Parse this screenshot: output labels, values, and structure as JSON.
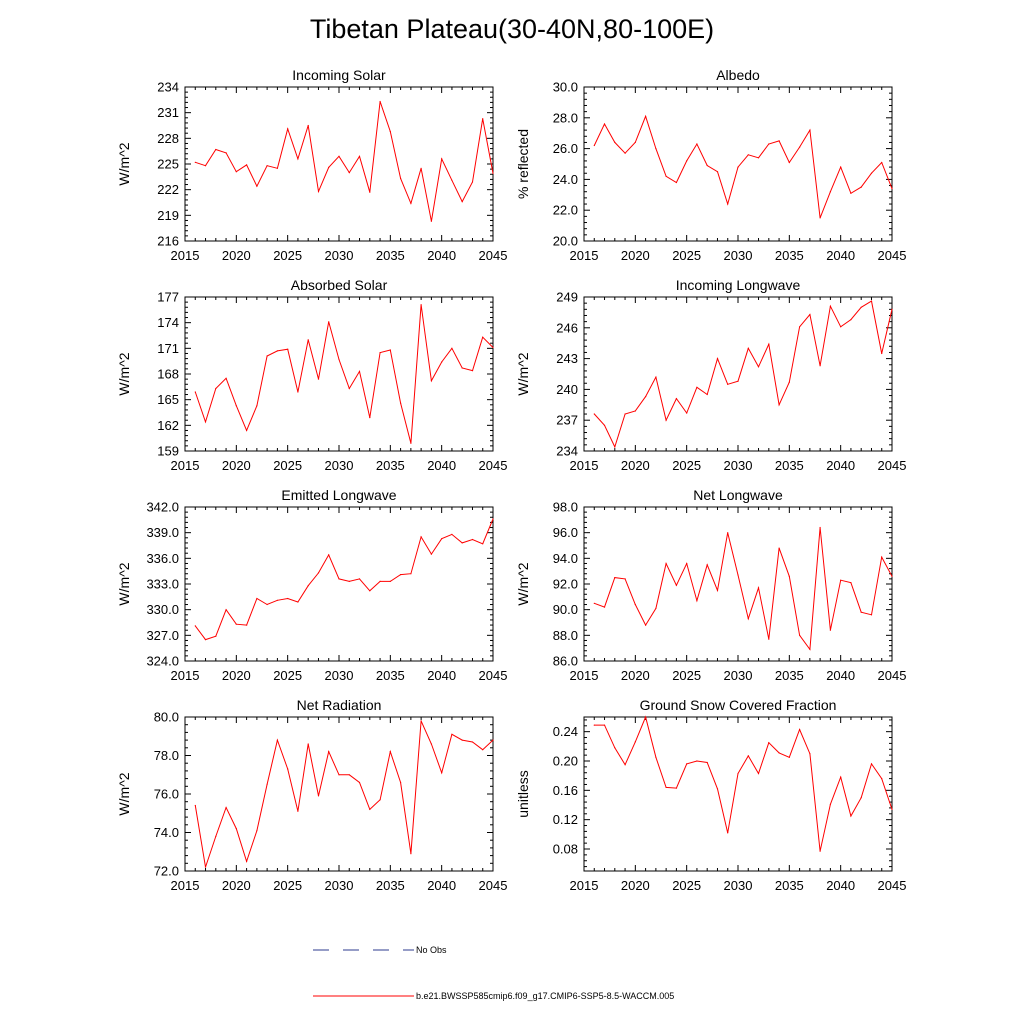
{
  "page": {
    "title": "Tibetan Plateau(30-40N,80-100E)"
  },
  "legend": {
    "no_obs": {
      "label": "No Obs",
      "color": "#2e3b8f"
    },
    "model": {
      "label": "b.e21.BWSSP585cmip6.f09_g17.CMIP6-SSP5-8.5-WACCM.005",
      "color": "#ff0000"
    }
  },
  "chart_data": [
    {
      "type": "line",
      "title": "Incoming Solar",
      "ylabel": "W/m^2",
      "xlabel": "",
      "xlim": [
        2015,
        2045
      ],
      "xticks": [
        "2015",
        "2020",
        "2025",
        "2030",
        "2035",
        "2040",
        "2045"
      ],
      "ylim": [
        216,
        234
      ],
      "yticks": [
        "216",
        "219",
        "222",
        "225",
        "228",
        "231",
        "234"
      ],
      "series": [
        {
          "name": "b.e21.BWSSP585cmip6.f09_g17.CMIP6-SSP5-8.5-WACCM.005",
          "x": [
            2016,
            2017,
            2018,
            2019,
            2020,
            2021,
            2022,
            2023,
            2024,
            2025,
            2026,
            2027,
            2028,
            2029,
            2030,
            2031,
            2032,
            2033,
            2034,
            2035,
            2036,
            2037,
            2038,
            2039,
            2040,
            2041,
            2042,
            2043,
            2044,
            2045
          ],
          "values": [
            225.2,
            224.8,
            226.7,
            226.3,
            224.1,
            224.9,
            222.4,
            224.8,
            224.5,
            229.1,
            225.6,
            229.5,
            221.8,
            224.6,
            225.9,
            224.0,
            225.9,
            221.7,
            232.3,
            228.8,
            223.3,
            220.4,
            224.5,
            218.3,
            225.6,
            223.1,
            220.6,
            222.9,
            230.3,
            223.9
          ]
        }
      ]
    },
    {
      "type": "line",
      "title": "Albedo",
      "ylabel": "% reflected",
      "xlabel": "",
      "xlim": [
        2015,
        2045
      ],
      "xticks": [
        "2015",
        "2020",
        "2025",
        "2030",
        "2035",
        "2040",
        "2045"
      ],
      "ylim": [
        20,
        30
      ],
      "yticks": [
        "20.0",
        "22.0",
        "24.0",
        "26.0",
        "28.0",
        "30.0"
      ],
      "series": [
        {
          "name": "b.e21.BWSSP585cmip6.f09_g17.CMIP6-SSP5-8.5-WACCM.005",
          "x": [
            2016,
            2017,
            2018,
            2019,
            2020,
            2021,
            2022,
            2023,
            2024,
            2025,
            2026,
            2027,
            2028,
            2029,
            2030,
            2031,
            2032,
            2033,
            2034,
            2035,
            2036,
            2037,
            2038,
            2039,
            2040,
            2041,
            2042,
            2043,
            2044,
            2045
          ],
          "values": [
            26.2,
            27.6,
            26.4,
            25.7,
            26.4,
            28.1,
            26.0,
            24.2,
            23.8,
            25.2,
            26.3,
            24.9,
            24.5,
            22.4,
            24.8,
            25.6,
            25.4,
            26.3,
            26.5,
            25.1,
            26.1,
            27.2,
            21.5,
            23.2,
            24.8,
            23.1,
            23.5,
            24.4,
            25.1,
            23.4
          ]
        }
      ]
    },
    {
      "type": "line",
      "title": "Absorbed Solar",
      "ylabel": "W/m^2",
      "xlabel": "",
      "xlim": [
        2015,
        2045
      ],
      "xticks": [
        "2015",
        "2020",
        "2025",
        "2030",
        "2035",
        "2040",
        "2045"
      ],
      "ylim": [
        159,
        177
      ],
      "yticks": [
        "159",
        "162",
        "165",
        "168",
        "171",
        "174",
        "177"
      ],
      "series": [
        {
          "name": "b.e21.BWSSP585cmip6.f09_g17.CMIP6-SSP5-8.5-WACCM.005",
          "x": [
            2016,
            2017,
            2018,
            2019,
            2020,
            2021,
            2022,
            2023,
            2024,
            2025,
            2026,
            2027,
            2028,
            2029,
            2030,
            2031,
            2032,
            2033,
            2034,
            2035,
            2036,
            2037,
            2038,
            2039,
            2040,
            2041,
            2042,
            2043,
            2044,
            2045
          ],
          "values": [
            165.9,
            162.4,
            166.3,
            167.5,
            164.3,
            161.4,
            164.3,
            170.1,
            170.7,
            170.9,
            165.9,
            172.0,
            167.4,
            174.1,
            169.7,
            166.3,
            168.3,
            162.9,
            170.5,
            170.8,
            164.6,
            159.9,
            176.1,
            167.2,
            169.4,
            171.0,
            168.7,
            168.4,
            172.3,
            171.1
          ]
        }
      ]
    },
    {
      "type": "line",
      "title": "Incoming Longwave",
      "ylabel": "W/m^2",
      "xlabel": "",
      "xlim": [
        2015,
        2045
      ],
      "xticks": [
        "2015",
        "2020",
        "2025",
        "2030",
        "2035",
        "2040",
        "2045"
      ],
      "ylim": [
        234,
        249
      ],
      "yticks": [
        "234",
        "237",
        "240",
        "243",
        "246",
        "249"
      ],
      "series": [
        {
          "name": "b.e21.BWSSP585cmip6.f09_g17.CMIP6-SSP5-8.5-WACCM.005",
          "x": [
            2016,
            2017,
            2018,
            2019,
            2020,
            2021,
            2022,
            2023,
            2024,
            2025,
            2026,
            2027,
            2028,
            2029,
            2030,
            2031,
            2032,
            2033,
            2034,
            2035,
            2036,
            2037,
            2038,
            2039,
            2040,
            2041,
            2042,
            2043,
            2044,
            2045
          ],
          "values": [
            237.6,
            236.5,
            234.4,
            237.6,
            237.9,
            239.3,
            241.2,
            237.0,
            239.1,
            237.7,
            240.2,
            239.5,
            243.0,
            240.5,
            240.8,
            244.0,
            242.2,
            244.4,
            238.5,
            240.7,
            246.1,
            247.3,
            242.3,
            248.1,
            246.1,
            246.8,
            248.0,
            248.6,
            243.5,
            247.8
          ]
        }
      ]
    },
    {
      "type": "line",
      "title": "Emitted Longwave",
      "ylabel": "W/m^2",
      "xlabel": "",
      "xlim": [
        2015,
        2045
      ],
      "xticks": [
        "2015",
        "2020",
        "2025",
        "2030",
        "2035",
        "2040",
        "2045"
      ],
      "ylim": [
        324,
        342
      ],
      "yticks": [
        "324.0",
        "327.0",
        "330.0",
        "333.0",
        "336.0",
        "339.0",
        "342.0"
      ],
      "series": [
        {
          "name": "b.e21.BWSSP585cmip6.f09_g17.CMIP6-SSP5-8.5-WACCM.005",
          "x": [
            2016,
            2017,
            2018,
            2019,
            2020,
            2021,
            2022,
            2023,
            2024,
            2025,
            2026,
            2027,
            2028,
            2029,
            2030,
            2031,
            2032,
            2033,
            2034,
            2035,
            2036,
            2037,
            2038,
            2039,
            2040,
            2041,
            2042,
            2043,
            2044,
            2045
          ],
          "values": [
            328.1,
            326.5,
            326.9,
            330.0,
            328.3,
            328.2,
            331.3,
            330.6,
            331.1,
            331.3,
            330.9,
            332.8,
            334.3,
            336.4,
            333.6,
            333.3,
            333.6,
            332.2,
            333.3,
            333.3,
            334.1,
            334.2,
            338.5,
            336.5,
            338.3,
            338.8,
            337.8,
            338.2,
            337.7,
            340.6
          ]
        }
      ]
    },
    {
      "type": "line",
      "title": "Net Longwave",
      "ylabel": "W/m^2",
      "xlabel": "",
      "xlim": [
        2015,
        2045
      ],
      "xticks": [
        "2015",
        "2020",
        "2025",
        "2030",
        "2035",
        "2040",
        "2045"
      ],
      "ylim": [
        86,
        98
      ],
      "yticks": [
        "86.0",
        "88.0",
        "90.0",
        "92.0",
        "94.0",
        "96.0",
        "98.0"
      ],
      "series": [
        {
          "name": "b.e21.BWSSP585cmip6.f09_g17.CMIP6-SSP5-8.5-WACCM.005",
          "x": [
            2016,
            2017,
            2018,
            2019,
            2020,
            2021,
            2022,
            2023,
            2024,
            2025,
            2026,
            2027,
            2028,
            2029,
            2030,
            2031,
            2032,
            2033,
            2034,
            2035,
            2036,
            2037,
            2038,
            2039,
            2040,
            2041,
            2042,
            2043,
            2044,
            2045
          ],
          "values": [
            90.5,
            90.2,
            92.5,
            92.4,
            90.4,
            88.8,
            90.1,
            93.6,
            91.9,
            93.6,
            90.7,
            93.5,
            91.5,
            96.0,
            92.7,
            89.3,
            91.7,
            87.7,
            94.8,
            92.6,
            88.0,
            86.9,
            96.4,
            88.4,
            92.3,
            92.1,
            89.8,
            89.6,
            94.1,
            92.6
          ]
        }
      ]
    },
    {
      "type": "line",
      "title": "Net Radiation",
      "ylabel": "W/m^2",
      "xlabel": "",
      "xlim": [
        2015,
        2045
      ],
      "xticks": [
        "2015",
        "2020",
        "2025",
        "2030",
        "2035",
        "2040",
        "2045"
      ],
      "ylim": [
        72,
        80
      ],
      "yticks": [
        "72.0",
        "74.0",
        "76.0",
        "78.0",
        "80.0"
      ],
      "series": [
        {
          "name": "b.e21.BWSSP585cmip6.f09_g17.CMIP6-SSP5-8.5-WACCM.005",
          "x": [
            2016,
            2017,
            2018,
            2019,
            2020,
            2021,
            2022,
            2023,
            2024,
            2025,
            2026,
            2027,
            2028,
            2029,
            2030,
            2031,
            2032,
            2033,
            2034,
            2035,
            2036,
            2037,
            2038,
            2039,
            2040,
            2041,
            2042,
            2043,
            2044,
            2045
          ],
          "values": [
            75.4,
            72.2,
            73.8,
            75.3,
            74.2,
            72.5,
            74.1,
            76.5,
            78.8,
            77.3,
            75.1,
            78.6,
            75.9,
            78.2,
            77.0,
            77.0,
            76.6,
            75.2,
            75.7,
            78.2,
            76.6,
            72.9,
            79.8,
            78.6,
            77.1,
            79.1,
            78.8,
            78.7,
            78.3,
            78.8
          ]
        }
      ]
    },
    {
      "type": "line",
      "title": "Ground Snow Covered Fraction",
      "ylabel": "unitless",
      "xlabel": "",
      "xlim": [
        2015,
        2045
      ],
      "xticks": [
        "2015",
        "2020",
        "2025",
        "2030",
        "2035",
        "2040",
        "2045"
      ],
      "ylim": [
        0.05,
        0.26
      ],
      "yticks": [
        "0.08",
        "0.12",
        "0.16",
        "0.20",
        "0.24"
      ],
      "yticks_at": [
        0.08,
        0.12,
        0.16,
        0.2,
        0.24
      ],
      "series": [
        {
          "name": "b.e21.BWSSP585cmip6.f09_g17.CMIP6-SSP5-8.5-WACCM.005",
          "x": [
            2016,
            2017,
            2018,
            2019,
            2020,
            2021,
            2022,
            2023,
            2024,
            2025,
            2026,
            2027,
            2028,
            2029,
            2030,
            2031,
            2032,
            2033,
            2034,
            2035,
            2036,
            2037,
            2038,
            2039,
            2040,
            2041,
            2042,
            2043,
            2044,
            2045
          ],
          "values": [
            0.249,
            0.249,
            0.218,
            0.195,
            0.226,
            0.26,
            0.205,
            0.164,
            0.163,
            0.196,
            0.2,
            0.198,
            0.162,
            0.102,
            0.183,
            0.207,
            0.183,
            0.225,
            0.211,
            0.205,
            0.243,
            0.21,
            0.077,
            0.141,
            0.178,
            0.125,
            0.15,
            0.196,
            0.176,
            0.134
          ]
        }
      ]
    }
  ]
}
